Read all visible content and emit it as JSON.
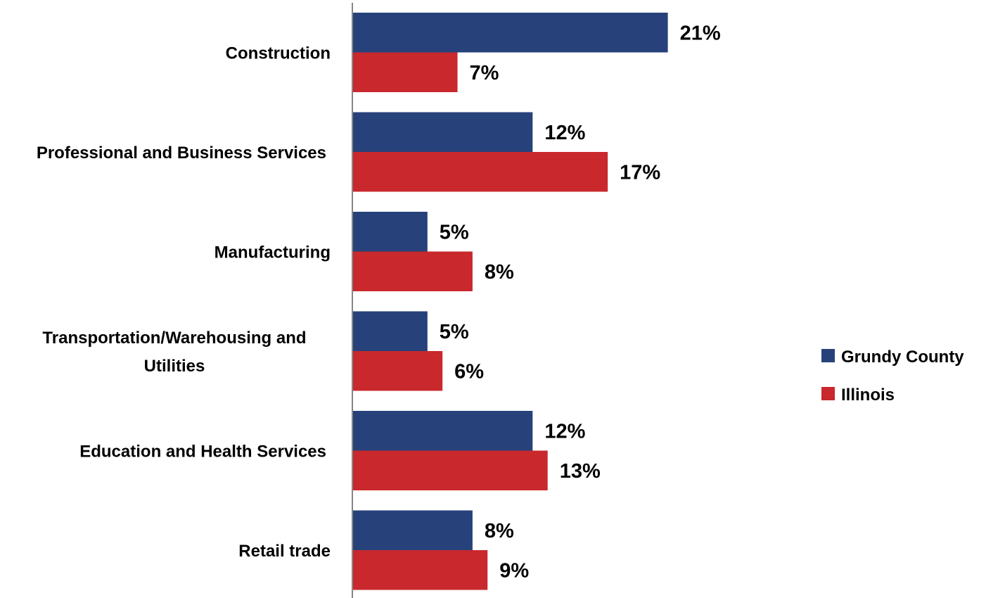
{
  "chart_data": {
    "type": "bar",
    "orientation": "horizontal",
    "categories": [
      "Construction",
      "Professional and Business Services",
      "Manufacturing",
      "Transportation/Warehousing and Utilities",
      "Education and Health Services",
      "Retail trade"
    ],
    "series": [
      {
        "name": "Grundy County",
        "color": "#27427a",
        "values": [
          21,
          12,
          5,
          5,
          12,
          8
        ],
        "labels": [
          "21%",
          "12%",
          "5%",
          "5%",
          "12%",
          "8%"
        ]
      },
      {
        "name": "Illinois",
        "color": "#c9282d",
        "values": [
          7,
          17,
          8,
          6,
          13,
          9
        ],
        "labels": [
          "7%",
          "17%",
          "8%",
          "6%",
          "13%",
          "9%"
        ]
      }
    ],
    "title": "",
    "xlabel": "",
    "ylabel": "",
    "xlim": [
      0,
      23.5
    ],
    "grid": false,
    "legend": "right",
    "axis_color": "#868686"
  }
}
